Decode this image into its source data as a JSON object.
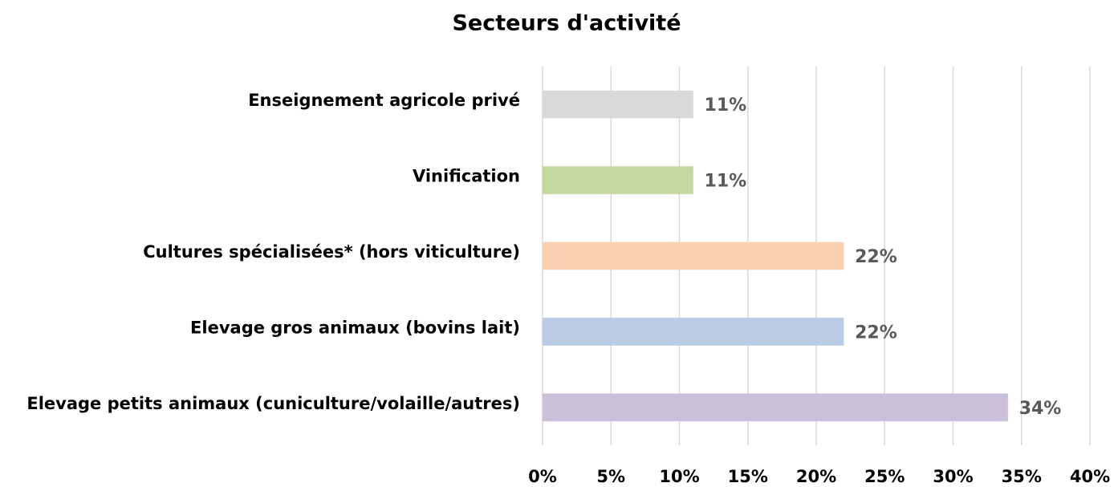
{
  "chart_data": {
    "type": "bar",
    "orientation": "horizontal",
    "title": "Secteurs d'activité",
    "categories": [
      "Enseignement agricole privé",
      "Vinification",
      "Cultures spécialisées* (hors viticulture)",
      "Elevage gros animaux (bovins lait)",
      "Elevage petits animaux (cuniculture/volaille/autres)"
    ],
    "values": [
      11,
      11,
      22,
      22,
      34
    ],
    "value_labels": [
      "11%",
      "11%",
      "22%",
      "22%",
      "34%"
    ],
    "colors": [
      "#d9d9d9",
      "#c5d89e",
      "#f9cfb0",
      "#b9cce4",
      "#cbc0da"
    ],
    "xlim": [
      0,
      40
    ],
    "xticks": [
      {
        "value": 0,
        "label": "0%"
      },
      {
        "value": 5,
        "label": "5%"
      },
      {
        "value": 10,
        "label": "10%"
      },
      {
        "value": 15,
        "label": "15%"
      },
      {
        "value": 20,
        "label": "20%"
      },
      {
        "value": 25,
        "label": "25%"
      },
      {
        "value": 30,
        "label": "30%"
      },
      {
        "value": 35,
        "label": "35%"
      },
      {
        "value": 40,
        "label": "40%"
      }
    ],
    "grid": true
  }
}
